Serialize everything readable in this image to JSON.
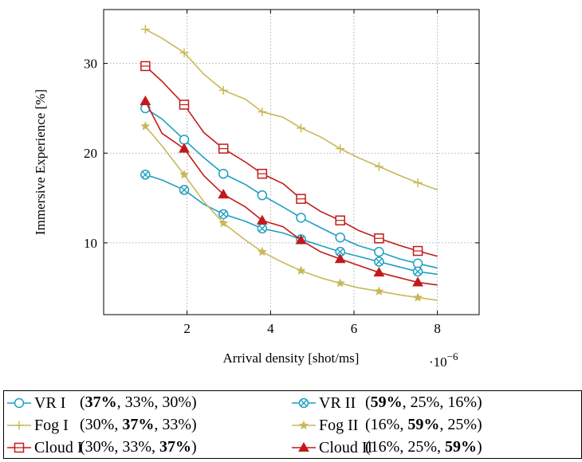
{
  "chart_data": {
    "type": "line",
    "xlabel": "Arrival density [shot/ms]",
    "ylabel": "Immersive Experience [%]",
    "x_scale_label": "·10",
    "x_scale_exp": "−6",
    "xlim": [
      0,
      9
    ],
    "ylim": [
      2,
      36
    ],
    "xticks": [
      2,
      4,
      6,
      8
    ],
    "yticks": [
      10,
      20,
      30
    ],
    "grid": true,
    "legend_position": "bottom",
    "series": [
      {
        "name": "VR I",
        "color": "#1f9fc2",
        "marker": "circle",
        "shares": [
          "37%",
          "33%",
          "30%"
        ],
        "bold_index": 0,
        "x": [
          1,
          1.4,
          1.93,
          2.4,
          2.87,
          3.4,
          3.8,
          4.3,
          4.73,
          5.2,
          5.67,
          6.1,
          6.6,
          7.1,
          7.53,
          8.0
        ],
        "y": [
          25.0,
          23.8,
          21.5,
          19.5,
          17.7,
          16.5,
          15.3,
          14.0,
          12.8,
          11.7,
          10.6,
          9.7,
          9.0,
          8.2,
          7.7,
          7.2
        ],
        "marker_x": [
          1,
          1.93,
          2.87,
          3.8,
          4.73,
          5.67,
          6.6,
          7.53
        ],
        "marker_y": [
          25.0,
          21.5,
          17.7,
          15.3,
          12.8,
          10.6,
          9.0,
          7.7
        ]
      },
      {
        "name": "VR II",
        "color": "#1f9fc2",
        "marker": "circle-x",
        "shares": [
          "59%",
          "25%",
          "16%"
        ],
        "bold_index": 0,
        "x": [
          1,
          1.4,
          1.93,
          2.4,
          2.87,
          3.4,
          3.8,
          4.3,
          4.73,
          5.2,
          5.67,
          6.1,
          6.6,
          7.1,
          7.53,
          8.0
        ],
        "y": [
          17.6,
          17.0,
          15.9,
          14.3,
          13.2,
          12.4,
          11.6,
          11.1,
          10.4,
          9.7,
          9.0,
          8.5,
          7.9,
          7.3,
          6.8,
          6.5
        ],
        "marker_x": [
          1,
          1.93,
          2.87,
          3.8,
          4.73,
          5.67,
          6.6,
          7.53
        ],
        "marker_y": [
          17.6,
          15.9,
          13.2,
          11.6,
          10.4,
          9.0,
          7.9,
          6.8
        ]
      },
      {
        "name": "Fog I",
        "color": "#c7b95a",
        "marker": "plus",
        "shares": [
          "30%",
          "37%",
          "33%"
        ],
        "bold_index": 1,
        "x": [
          1,
          1.4,
          1.93,
          2.4,
          2.87,
          3.4,
          3.8,
          4.3,
          4.73,
          5.2,
          5.67,
          6.1,
          6.6,
          7.1,
          7.53,
          8.0
        ],
        "y": [
          33.8,
          32.8,
          31.2,
          28.8,
          27.0,
          26.0,
          24.6,
          24.0,
          22.8,
          21.8,
          20.5,
          19.5,
          18.5,
          17.5,
          16.7,
          15.9
        ],
        "marker_x": [
          1,
          1.93,
          2.87,
          3.8,
          4.73,
          5.67,
          6.6,
          7.53
        ],
        "marker_y": [
          33.8,
          31.2,
          27.0,
          24.6,
          22.8,
          20.5,
          18.5,
          16.7
        ]
      },
      {
        "name": "Fog II",
        "color": "#c7b95a",
        "marker": "star",
        "shares": [
          "16%",
          "59%",
          "25%"
        ],
        "bold_index": 1,
        "x": [
          1,
          1.4,
          1.93,
          2.4,
          2.87,
          3.4,
          3.8,
          4.3,
          4.73,
          5.2,
          5.67,
          6.1,
          6.6,
          7.1,
          7.53,
          8.0
        ],
        "y": [
          23.0,
          20.8,
          17.6,
          14.6,
          12.2,
          10.3,
          9.0,
          7.8,
          6.9,
          6.1,
          5.5,
          5.0,
          4.6,
          4.2,
          3.9,
          3.6
        ],
        "marker_x": [
          1,
          1.93,
          2.87,
          3.8,
          4.73,
          5.67,
          6.6,
          7.53
        ],
        "marker_y": [
          23.0,
          17.6,
          12.2,
          9.0,
          6.9,
          5.5,
          4.6,
          3.9
        ]
      },
      {
        "name": "Cloud I",
        "color": "#c21a1a",
        "marker": "square",
        "shares": [
          "30%",
          "33%",
          "37%"
        ],
        "bold_index": 2,
        "x": [
          1,
          1.4,
          1.93,
          2.4,
          2.87,
          3.4,
          3.8,
          4.3,
          4.73,
          5.2,
          5.67,
          6.1,
          6.6,
          7.1,
          7.53,
          8.0
        ],
        "y": [
          29.7,
          28.0,
          25.4,
          22.3,
          20.5,
          19.0,
          17.7,
          16.6,
          14.9,
          13.5,
          12.5,
          11.4,
          10.5,
          9.7,
          9.1,
          8.5
        ],
        "marker_x": [
          1,
          1.93,
          2.87,
          3.8,
          4.73,
          5.67,
          6.6,
          7.53
        ],
        "marker_y": [
          29.7,
          25.4,
          20.5,
          17.7,
          14.9,
          12.5,
          10.5,
          9.1
        ]
      },
      {
        "name": "Cloud II",
        "color": "#c21a1a",
        "marker": "triangle",
        "shares": [
          "16%",
          "25%",
          "59%"
        ],
        "bold_index": 2,
        "x": [
          1,
          1.4,
          1.93,
          2.4,
          2.87,
          3.4,
          3.8,
          4.3,
          4.73,
          5.2,
          5.67,
          6.1,
          6.6,
          7.1,
          7.53,
          8.0
        ],
        "y": [
          25.8,
          22.2,
          20.5,
          17.5,
          15.4,
          14.0,
          12.5,
          11.8,
          10.3,
          9.0,
          8.2,
          7.5,
          6.7,
          6.1,
          5.6,
          5.3
        ],
        "marker_x": [
          1,
          1.93,
          2.87,
          3.8,
          4.73,
          5.67,
          6.6,
          7.53
        ],
        "marker_y": [
          25.8,
          20.5,
          15.4,
          12.5,
          10.3,
          8.2,
          6.7,
          5.6
        ]
      }
    ]
  }
}
